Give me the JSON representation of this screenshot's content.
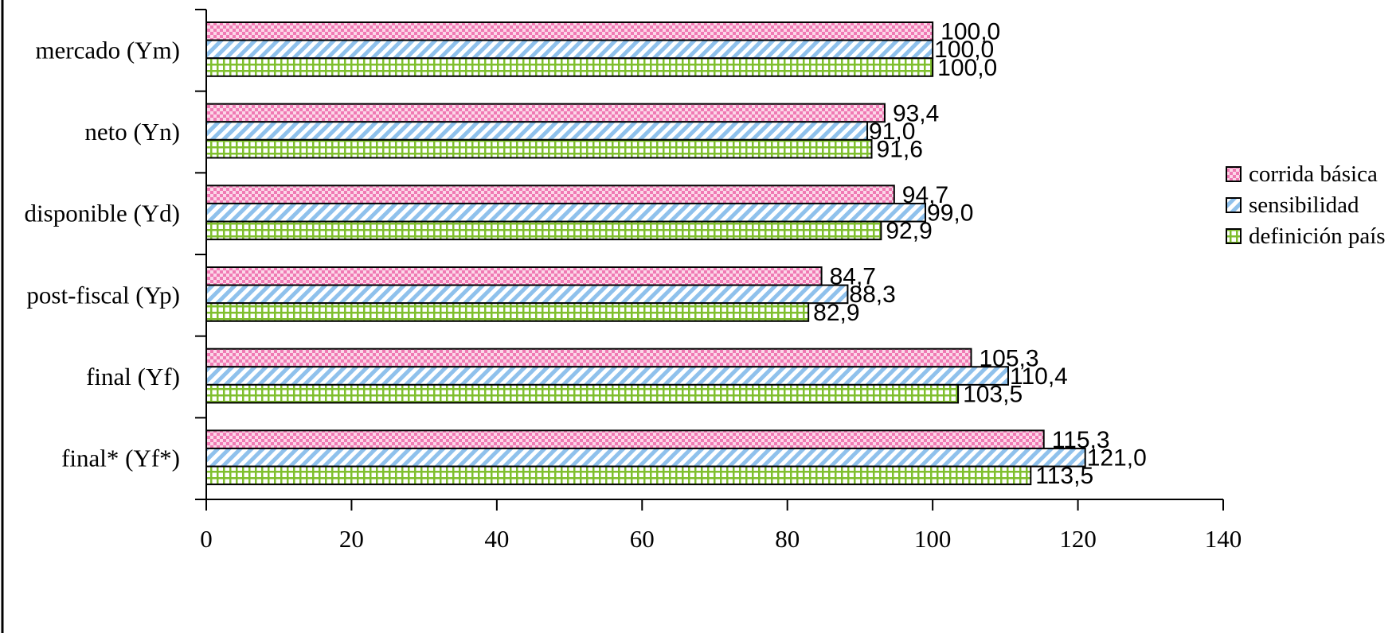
{
  "chart_data": {
    "type": "bar",
    "orientation": "horizontal",
    "title": "",
    "xlabel": "",
    "ylabel": "",
    "xlim": [
      0,
      140
    ],
    "x_ticks": [
      "0",
      "20",
      "40",
      "60",
      "80",
      "100",
      "120",
      "140"
    ],
    "categories": [
      "mercado (Ym)",
      "neto (Yn)",
      "disponible (Yd)",
      "post-fiscal (Yp)",
      "final (Yf)",
      "final* (Yf*)"
    ],
    "series": [
      {
        "name": "corrida básica",
        "values": [
          100.0,
          93.4,
          94.7,
          84.7,
          105.3,
          115.3
        ],
        "labels": [
          "100,0",
          "93,4",
          "94,7",
          "84,7",
          "105,3",
          "115,3"
        ],
        "color": "#f4a3c8",
        "pattern": "checker"
      },
      {
        "name": "sensibilidad",
        "values": [
          100.0,
          91.0,
          99.0,
          88.3,
          110.4,
          121.0
        ],
        "labels": [
          "100,0",
          "91,0",
          "99,0",
          "88,3",
          "110,4",
          "121,0"
        ],
        "color": "#9ec9ee",
        "pattern": "diagonal"
      },
      {
        "name": "definición país",
        "values": [
          100.0,
          91.6,
          92.9,
          82.9,
          103.5,
          113.5
        ],
        "labels": [
          "100,0",
          "91,6",
          "92,9",
          "82,9",
          "103,5",
          "113,5"
        ],
        "color": "#8fc93a",
        "pattern": "grid"
      }
    ],
    "legend_position": "right",
    "grid": false
  }
}
